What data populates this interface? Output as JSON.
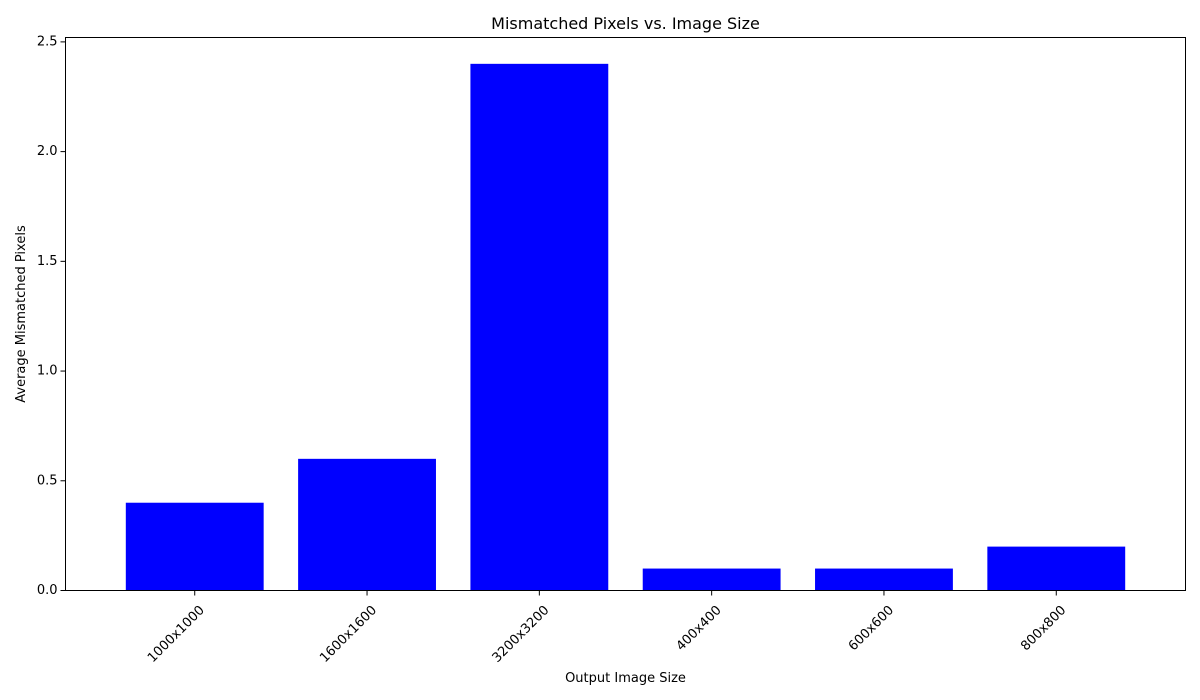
{
  "chart_data": {
    "type": "bar",
    "title": "Mismatched Pixels vs. Image Size",
    "xlabel": "Output Image Size",
    "ylabel": "Average Mismatched Pixels",
    "categories": [
      "1000x1000",
      "1600x1600",
      "3200x3200",
      "400x400",
      "600x600",
      "800x800"
    ],
    "values": [
      0.4,
      0.6,
      2.4,
      0.1,
      0.1,
      0.2
    ],
    "ylim": [
      0,
      2.52
    ],
    "yticks": [
      0.0,
      0.5,
      1.0,
      1.5,
      2.0,
      2.5
    ],
    "ytick_labels": [
      "0.0",
      "0.5",
      "1.0",
      "1.5",
      "2.0",
      "2.5"
    ],
    "bar_color": "#0000ff",
    "grid": false,
    "legend": "none",
    "xtick_rotation": 45
  }
}
